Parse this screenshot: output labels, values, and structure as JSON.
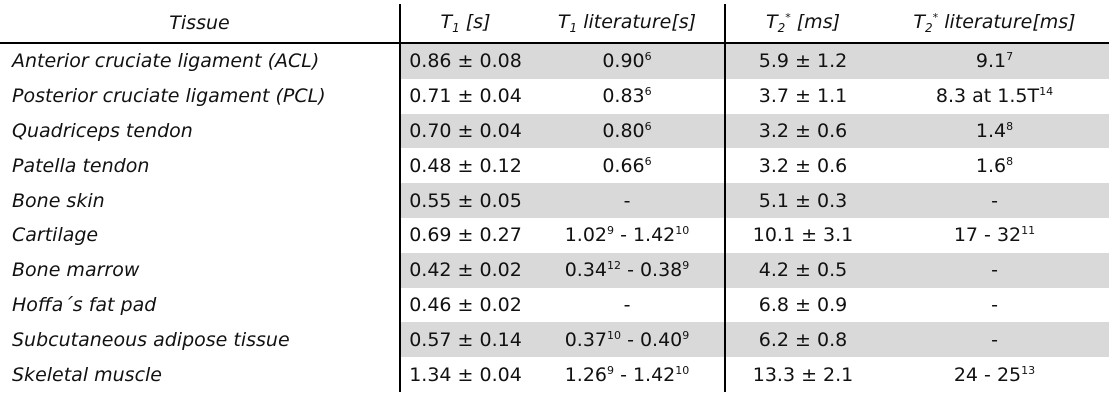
{
  "table": {
    "header": [
      [
        {
          "t": "Tissue"
        }
      ],
      [
        {
          "t": "T"
        },
        {
          "sub": "1"
        },
        {
          "t": " [s]"
        }
      ],
      [
        {
          "t": "T"
        },
        {
          "sub": "1"
        },
        {
          "t": " literature[s]"
        }
      ],
      [
        {
          "t": "T"
        },
        {
          "sub": "2"
        },
        {
          "sup": "*"
        },
        {
          "t": " [ms]"
        }
      ],
      [
        {
          "t": "T"
        },
        {
          "sub": "2"
        },
        {
          "sup": "*"
        },
        {
          "t": " literature[ms]"
        }
      ]
    ],
    "rows": [
      [
        [
          {
            "t": "Anterior cruciate ligament (ACL)"
          }
        ],
        [
          {
            "t": "0.86 ± 0.08"
          }
        ],
        [
          {
            "t": "0.90"
          },
          {
            "sup": "6"
          }
        ],
        [
          {
            "t": "5.9 ± 1.2"
          }
        ],
        [
          {
            "t": "9.1"
          },
          {
            "sup": "7"
          }
        ]
      ],
      [
        [
          {
            "t": "Posterior cruciate ligament (PCL)"
          }
        ],
        [
          {
            "t": "0.71 ± 0.04"
          }
        ],
        [
          {
            "t": "0.83"
          },
          {
            "sup": "6"
          }
        ],
        [
          {
            "t": "3.7 ± 1.1"
          }
        ],
        [
          {
            "t": "8.3 at 1.5T"
          },
          {
            "sup": "14"
          }
        ]
      ],
      [
        [
          {
            "t": "Quadriceps tendon"
          }
        ],
        [
          {
            "t": "0.70 ± 0.04"
          }
        ],
        [
          {
            "t": "0.80"
          },
          {
            "sup": "6"
          }
        ],
        [
          {
            "t": "3.2 ± 0.6"
          }
        ],
        [
          {
            "t": "1.4"
          },
          {
            "sup": "8"
          }
        ]
      ],
      [
        [
          {
            "t": "Patella tendon"
          }
        ],
        [
          {
            "t": "0.48 ± 0.12"
          }
        ],
        [
          {
            "t": "0.66"
          },
          {
            "sup": "6"
          }
        ],
        [
          {
            "t": "3.2 ± 0.6"
          }
        ],
        [
          {
            "t": "1.6"
          },
          {
            "sup": "8"
          }
        ]
      ],
      [
        [
          {
            "t": "Bone skin"
          }
        ],
        [
          {
            "t": "0.55 ± 0.05"
          }
        ],
        [
          {
            "t": "-"
          }
        ],
        [
          {
            "t": "5.1 ± 0.3"
          }
        ],
        [
          {
            "t": "-"
          }
        ]
      ],
      [
        [
          {
            "t": "Cartilage"
          }
        ],
        [
          {
            "t": "0.69 ± 0.27"
          }
        ],
        [
          {
            "t": "1.02"
          },
          {
            "sup": "9"
          },
          {
            "t": " - 1.42"
          },
          {
            "sup": "10"
          }
        ],
        [
          {
            "t": "10.1 ± 3.1"
          }
        ],
        [
          {
            "t": "17 - 32"
          },
          {
            "sup": "11"
          }
        ]
      ],
      [
        [
          {
            "t": "Bone marrow"
          }
        ],
        [
          {
            "t": "0.42 ± 0.02"
          }
        ],
        [
          {
            "t": "0.34"
          },
          {
            "sup": "12"
          },
          {
            "t": " - 0.38"
          },
          {
            "sup": "9"
          }
        ],
        [
          {
            "t": "4.2 ± 0.5"
          }
        ],
        [
          {
            "t": "-"
          }
        ]
      ],
      [
        [
          {
            "t": "Hoffa´s fat pad"
          }
        ],
        [
          {
            "t": "0.46 ± 0.02"
          }
        ],
        [
          {
            "t": "-"
          }
        ],
        [
          {
            "t": "6.8 ± 0.9"
          }
        ],
        [
          {
            "t": "-"
          }
        ]
      ],
      [
        [
          {
            "t": "Subcutaneous adipose tissue"
          }
        ],
        [
          {
            "t": "0.57 ± 0.14"
          }
        ],
        [
          {
            "t": "0.37"
          },
          {
            "sup": "10"
          },
          {
            "t": " - 0.40"
          },
          {
            "sup": "9"
          }
        ],
        [
          {
            "t": "6.2 ± 0.8"
          }
        ],
        [
          {
            "t": "-"
          }
        ]
      ],
      [
        [
          {
            "t": "Skeletal muscle"
          }
        ],
        [
          {
            "t": "1.34 ± 0.04"
          }
        ],
        [
          {
            "t": "1.26"
          },
          {
            "sup": "9"
          },
          {
            "t": " - 1.42"
          },
          {
            "sup": "10"
          }
        ],
        [
          {
            "t": "13.3 ± 2.1"
          }
        ],
        [
          {
            "t": "24 - 25"
          },
          {
            "sup": "13"
          }
        ]
      ]
    ]
  }
}
